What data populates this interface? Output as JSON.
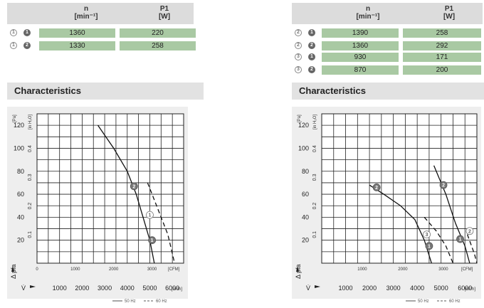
{
  "tables": [
    {
      "header": {
        "n": "n",
        "n_unit": "[min⁻¹]",
        "p": "P1",
        "p_unit": "[W]"
      },
      "rows": [
        {
          "badge_outline": "1",
          "badge_filled": "1",
          "n": "1360",
          "p": "220"
        },
        {
          "badge_outline": "1",
          "badge_filled": "2",
          "n": "1330",
          "p": "258"
        }
      ]
    },
    {
      "header": {
        "n": "n",
        "n_unit": "[min⁻¹]",
        "p": "P1",
        "p_unit": "[W]"
      },
      "rows": [
        {
          "badge_outline": "2",
          "badge_filled": "1",
          "n": "1390",
          "p": "258"
        },
        {
          "badge_outline": "2",
          "badge_filled": "2",
          "n": "1360",
          "p": "292"
        },
        {
          "badge_outline": "3",
          "badge_filled": "1",
          "n": "930",
          "p": "171"
        },
        {
          "badge_outline": "3",
          "badge_filled": "2",
          "n": "870",
          "p": "200"
        }
      ]
    }
  ],
  "section_title": "Characteristics",
  "chart_data": [
    {
      "type": "line",
      "ylabel_pa": "[Pa]",
      "ylabel_inh2o": "[in H₂O]",
      "ylabel_symbol": "Δ pfa",
      "xlabel_symbol": "V̇",
      "x_unit_m3h": "[m³/h]",
      "x_unit_cfm": "[CFM]",
      "ylim": [
        0,
        130
      ],
      "xlim": [
        0,
        6500
      ],
      "y_ticks_pa": [
        "20",
        "40",
        "60",
        "80",
        "100",
        "120"
      ],
      "y_ticks_inh2o": [
        "0.1",
        "0.2",
        "0.3",
        "0.4"
      ],
      "y_inh2o_values": [
        0.1,
        0.2,
        0.3,
        0.4
      ],
      "x_ticks_m3h": [
        "1000",
        "2000",
        "3000",
        "4000",
        "5000",
        "6000"
      ],
      "x_ticks_cfm": [
        "0",
        "1000",
        "2000",
        "3000"
      ],
      "x_cfm_values": [
        0,
        1000,
        2000,
        3000
      ],
      "legend": [
        "50 Hz",
        "60 Hz"
      ],
      "series": [
        {
          "name": "50 Hz",
          "dash": false,
          "points": [
            [
              2700,
              120
            ],
            [
              3400,
              100
            ],
            [
              4000,
              80
            ],
            [
              4400,
              60
            ],
            [
              4700,
              40
            ],
            [
              5000,
              20
            ],
            [
              5200,
              0
            ]
          ]
        },
        {
          "name": "60 Hz",
          "dash": true,
          "points": [
            [
              4900,
              70
            ],
            [
              5300,
              50
            ],
            [
              5800,
              25
            ],
            [
              6100,
              0
            ]
          ]
        }
      ],
      "markers": [
        {
          "label": "2",
          "filled": true,
          "x": 4300,
          "y": 67
        },
        {
          "label": "1",
          "filled": false,
          "x": 5000,
          "y": 42
        },
        {
          "label": "1",
          "filled": true,
          "x": 5100,
          "y": 20
        }
      ]
    },
    {
      "type": "line",
      "ylabel_pa": "[Pa]",
      "ylabel_inh2o": "[in H₂O]",
      "ylabel_symbol": "Δ pfa",
      "xlabel_symbol": "V̇",
      "x_unit_m3h": "[m³/h]",
      "x_unit_cfm": "[CFM]",
      "ylim": [
        0,
        130
      ],
      "xlim": [
        0,
        6500
      ],
      "y_ticks_pa": [
        "20",
        "40",
        "60",
        "80",
        "100",
        "120"
      ],
      "y_ticks_inh2o": [
        "0.1",
        "0.2",
        "0.3",
        "0.4"
      ],
      "y_inh2o_values": [
        0.1,
        0.2,
        0.3,
        0.4
      ],
      "x_ticks_m3h": [
        "1000",
        "2000",
        "3000",
        "4000",
        "5000",
        "6000"
      ],
      "x_ticks_cfm": [
        "1000",
        "2000",
        "3000"
      ],
      "x_cfm_values": [
        1000,
        2000,
        3000
      ],
      "legend": [
        "50 Hz",
        "60 Hz"
      ],
      "series": [
        {
          "name": "50 Hz",
          "dash": false,
          "points": [
            [
              2000,
              68
            ],
            [
              2600,
              60
            ],
            [
              3300,
              50
            ],
            [
              3900,
              38
            ],
            [
              4300,
              20
            ],
            [
              4600,
              0
            ]
          ]
        },
        {
          "name": "50 Hz",
          "dash": false,
          "points": [
            [
              4700,
              85
            ],
            [
              5200,
              60
            ],
            [
              5600,
              35
            ],
            [
              6000,
              15
            ],
            [
              6200,
              0
            ]
          ]
        },
        {
          "name": "60 Hz",
          "dash": true,
          "points": [
            [
              4300,
              40
            ],
            [
              4800,
              28
            ],
            [
              5200,
              15
            ],
            [
              5500,
              0
            ]
          ]
        },
        {
          "name": "60 Hz",
          "dash": true,
          "points": [
            [
              6100,
              25
            ],
            [
              6400,
              8
            ],
            [
              6500,
              0
            ]
          ]
        }
      ],
      "markers": [
        {
          "label": "2",
          "filled": true,
          "x": 2300,
          "y": 66
        },
        {
          "label": "2",
          "filled": true,
          "x": 5100,
          "y": 68
        },
        {
          "label": "3",
          "filled": false,
          "x": 4400,
          "y": 25
        },
        {
          "label": "1",
          "filled": true,
          "x": 4500,
          "y": 15
        },
        {
          "label": "2",
          "filled": false,
          "x": 6200,
          "y": 28
        },
        {
          "label": "1",
          "filled": true,
          "x": 5800,
          "y": 21
        }
      ]
    }
  ]
}
